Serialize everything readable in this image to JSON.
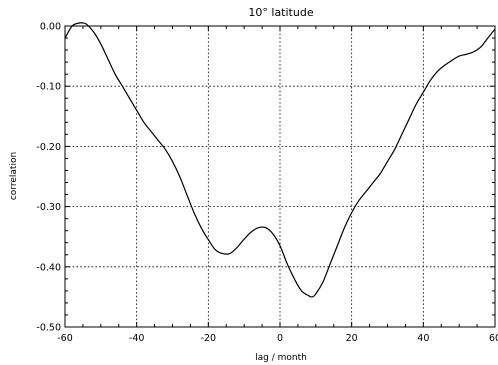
{
  "chart_data": {
    "type": "line",
    "title": "10° latitude",
    "xlabel": "lag / month",
    "ylabel": "correlation",
    "xlim": [
      -60,
      60
    ],
    "ylim": [
      -0.5,
      0.0
    ],
    "xticks": [
      -60,
      -40,
      -20,
      0,
      20,
      40,
      60
    ],
    "yticks": [
      -0.5,
      -0.4,
      -0.3,
      -0.2,
      -0.1,
      0.0
    ],
    "xtick_labels": [
      "-60",
      "-40",
      "-20",
      "0",
      "20",
      "40",
      "60"
    ],
    "ytick_labels": [
      "-0.50",
      "-0.40",
      "-0.30",
      "-0.20",
      "-0.10",
      "0.00"
    ],
    "grid": true,
    "series": [
      {
        "x": [
          -60,
          -58,
          -56,
          -55,
          -54,
          -52,
          -50,
          -48,
          -46,
          -44,
          -42,
          -40,
          -38,
          -36,
          -34,
          -32,
          -30,
          -28,
          -26,
          -24,
          -22,
          -20,
          -18,
          -16,
          -14,
          -12,
          -10,
          -8,
          -6,
          -4,
          -2,
          0,
          2,
          4,
          6,
          8,
          9,
          10,
          12,
          14,
          16,
          18,
          20,
          22,
          24,
          26,
          28,
          30,
          32,
          34,
          36,
          38,
          40,
          42,
          44,
          46,
          48,
          50,
          52,
          54,
          56,
          58,
          60
        ],
        "y": [
          -0.02,
          0.0,
          0.005,
          0.005,
          0.003,
          -0.01,
          -0.03,
          -0.055,
          -0.08,
          -0.1,
          -0.12,
          -0.14,
          -0.16,
          -0.175,
          -0.19,
          -0.205,
          -0.225,
          -0.25,
          -0.28,
          -0.31,
          -0.335,
          -0.355,
          -0.372,
          -0.378,
          -0.378,
          -0.368,
          -0.354,
          -0.342,
          -0.335,
          -0.335,
          -0.345,
          -0.365,
          -0.395,
          -0.42,
          -0.44,
          -0.448,
          -0.45,
          -0.445,
          -0.425,
          -0.395,
          -0.365,
          -0.335,
          -0.31,
          -0.29,
          -0.275,
          -0.26,
          -0.245,
          -0.225,
          -0.205,
          -0.18,
          -0.155,
          -0.13,
          -0.11,
          -0.09,
          -0.075,
          -0.065,
          -0.057,
          -0.05,
          -0.047,
          -0.043,
          -0.035,
          -0.02,
          -0.005
        ]
      }
    ]
  }
}
